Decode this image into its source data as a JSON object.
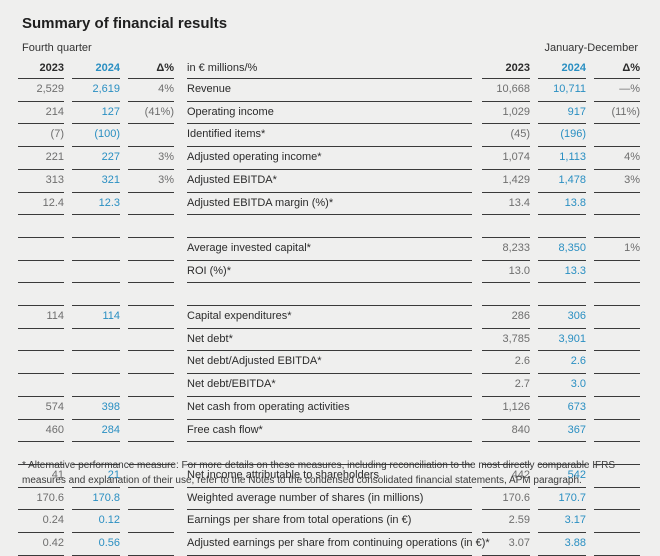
{
  "title": "Summary of financial results",
  "left_caption": "Fourth quarter",
  "right_caption": "January-December",
  "headers": {
    "q2023": "2023",
    "q2024": "2024",
    "qdelta": "Δ%",
    "label": "in € millions/%",
    "y2023": "2023",
    "y2024": "2024",
    "ydelta": "Δ%"
  },
  "rows": [
    {
      "q23": "2,529",
      "q24": "2,619",
      "qd": "4%",
      "label": "Revenue",
      "y23": "10,668",
      "y24": "10,711",
      "yd": "—%"
    },
    {
      "q23": "214",
      "q24": "127",
      "qd": "(41%)",
      "label": "Operating income",
      "y23": "1,029",
      "y24": "917",
      "yd": "(11%)"
    },
    {
      "q23": "(7)",
      "q24": "(100)",
      "qd": "",
      "label": "Identified items*",
      "y23": "(45)",
      "y24": "(196)",
      "yd": ""
    },
    {
      "q23": "221",
      "q24": "227",
      "qd": "3%",
      "label": "Adjusted operating income*",
      "y23": "1,074",
      "y24": "1,113",
      "yd": "4%"
    },
    {
      "q23": "313",
      "q24": "321",
      "qd": "3%",
      "label": "Adjusted EBITDA*",
      "y23": "1,429",
      "y24": "1,478",
      "yd": "3%"
    },
    {
      "q23": "12.4",
      "q24": "12.3",
      "qd": "",
      "label": "Adjusted EBITDA margin (%)*",
      "y23": "13.4",
      "y24": "13.8",
      "yd": ""
    },
    {
      "q23": "",
      "q24": "",
      "qd": "",
      "label": "",
      "y23": "",
      "y24": "",
      "yd": ""
    },
    {
      "q23": "",
      "q24": "",
      "qd": "",
      "label": "Average invested capital*",
      "y23": "8,233",
      "y24": "8,350",
      "yd": "1%"
    },
    {
      "q23": "",
      "q24": "",
      "qd": "",
      "label": "ROI (%)*",
      "y23": "13.0",
      "y24": "13.3",
      "yd": ""
    },
    {
      "q23": "",
      "q24": "",
      "qd": "",
      "label": "",
      "y23": "",
      "y24": "",
      "yd": ""
    },
    {
      "q23": "114",
      "q24": "114",
      "qd": "",
      "label": "Capital expenditures*",
      "y23": "286",
      "y24": "306",
      "yd": ""
    },
    {
      "q23": "",
      "q24": "",
      "qd": "",
      "label": "Net debt*",
      "y23": "3,785",
      "y24": "3,901",
      "yd": ""
    },
    {
      "q23": "",
      "q24": "",
      "qd": "",
      "label": "Net debt/Adjusted EBITDA*",
      "y23": "2.6",
      "y24": "2.6",
      "yd": ""
    },
    {
      "q23": "",
      "q24": "",
      "qd": "",
      "label": "Net debt/EBITDA*",
      "y23": "2.7",
      "y24": "3.0",
      "yd": ""
    },
    {
      "q23": "574",
      "q24": "398",
      "qd": "",
      "label": "Net cash from operating activities",
      "y23": "1,126",
      "y24": "673",
      "yd": ""
    },
    {
      "q23": "460",
      "q24": "284",
      "qd": "",
      "label": "Free cash flow*",
      "y23": "840",
      "y24": "367",
      "yd": ""
    },
    {
      "q23": "",
      "q24": "",
      "qd": "",
      "label": "",
      "y23": "",
      "y24": "",
      "yd": ""
    },
    {
      "q23": "41",
      "q24": "21",
      "qd": "",
      "label": "Net income attributable to shareholders",
      "y23": "442",
      "y24": "542",
      "yd": ""
    },
    {
      "q23": "170.6",
      "q24": "170.8",
      "qd": "",
      "label": "Weighted average number of shares (in millions)",
      "y23": "170.6",
      "y24": "170.7",
      "yd": ""
    },
    {
      "q23": "0.24",
      "q24": "0.12",
      "qd": "",
      "label": "Earnings per share from total operations (in €)",
      "y23": "2.59",
      "y24": "3.17",
      "yd": ""
    },
    {
      "q23": "0.42",
      "q24": "0.56",
      "qd": "",
      "label": "Adjusted earnings per share from continuing operations (in €)*",
      "y23": "3.07",
      "y24": "3.88",
      "yd": ""
    }
  ],
  "footnote": "* Alternative performance measure: For more details on these measures, including reconciliation to the most directly comparable IFRS measures and explanation of their use, refer to the Notes to the condensed consolidated financial statements, APM paragraph.",
  "colors": {
    "accent_blue": "#2a8fc2",
    "background": "#efefee",
    "rule": "#3a3a3a"
  }
}
